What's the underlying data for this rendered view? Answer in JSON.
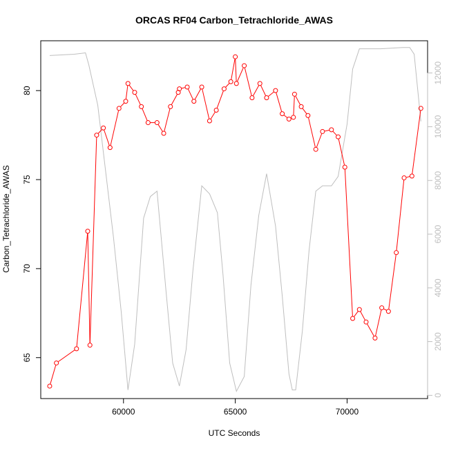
{
  "chart_data": {
    "type": "line",
    "title": "ORCAS RF04 Carbon_Tetrachloride_AWAS",
    "xlabel": "UTC Seconds",
    "ylabel": "Carbon_Tetrachloride_AWAS",
    "xlim": [
      56300,
      73600
    ],
    "ylim": [
      62.7,
      82.8
    ],
    "y2lim": [
      -120,
      13200
    ],
    "x_ticks": [
      60000,
      65000,
      70000
    ],
    "y_ticks": [
      65,
      70,
      75,
      80
    ],
    "y2_ticks": [
      0,
      2000,
      4000,
      6000,
      8000,
      10000,
      12000
    ],
    "grid": false,
    "series": [
      {
        "role": "primary",
        "color": "#ff0000",
        "marker": "open-circle",
        "points": [
          [
            56700,
            63.4
          ],
          [
            57000,
            64.7
          ],
          [
            57900,
            65.5
          ],
          [
            58400,
            72.1
          ],
          [
            58500,
            65.7
          ],
          [
            58800,
            77.5
          ],
          [
            59100,
            77.9
          ],
          [
            59400,
            76.8
          ],
          [
            59800,
            79.0
          ],
          [
            60100,
            79.4
          ],
          [
            60200,
            80.4
          ],
          [
            60500,
            79.9
          ],
          [
            60800,
            79.1
          ],
          [
            61100,
            78.2
          ],
          [
            61500,
            78.2
          ],
          [
            61800,
            77.6
          ],
          [
            62100,
            79.1
          ],
          [
            62450,
            79.9
          ],
          [
            62500,
            80.1
          ],
          [
            62850,
            80.2
          ],
          [
            63150,
            79.4
          ],
          [
            63500,
            80.2
          ],
          [
            63850,
            78.3
          ],
          [
            64150,
            78.9
          ],
          [
            64500,
            80.1
          ],
          [
            64800,
            80.5
          ],
          [
            65000,
            81.9
          ],
          [
            65050,
            80.4
          ],
          [
            65400,
            81.4
          ],
          [
            65750,
            79.6
          ],
          [
            66100,
            80.4
          ],
          [
            66400,
            79.6
          ],
          [
            66800,
            80.0
          ],
          [
            67100,
            78.7
          ],
          [
            67400,
            78.4
          ],
          [
            67600,
            78.5
          ],
          [
            67650,
            79.8
          ],
          [
            67950,
            79.1
          ],
          [
            68250,
            78.6
          ],
          [
            68600,
            76.7
          ],
          [
            68900,
            77.7
          ],
          [
            69300,
            77.8
          ],
          [
            69600,
            77.4
          ],
          [
            69900,
            75.7
          ],
          [
            70250,
            67.2
          ],
          [
            70550,
            67.7
          ],
          [
            70850,
            67.0
          ],
          [
            71250,
            66.1
          ],
          [
            71550,
            67.8
          ],
          [
            71850,
            67.6
          ],
          [
            72200,
            70.9
          ],
          [
            72550,
            75.1
          ],
          [
            72900,
            75.2
          ],
          [
            73300,
            79.0
          ]
        ]
      },
      {
        "role": "secondary",
        "color": "#bebebe",
        "marker": "none",
        "points": [
          [
            56700,
            12650
          ],
          [
            57800,
            12700
          ],
          [
            58300,
            12750
          ],
          [
            58450,
            12300
          ],
          [
            58850,
            10800
          ],
          [
            59550,
            5900
          ],
          [
            59900,
            3100
          ],
          [
            60200,
            200
          ],
          [
            60500,
            1900
          ],
          [
            60900,
            6600
          ],
          [
            61200,
            7400
          ],
          [
            61500,
            7600
          ],
          [
            61900,
            3900
          ],
          [
            62200,
            1200
          ],
          [
            62500,
            350
          ],
          [
            62800,
            1700
          ],
          [
            63100,
            4600
          ],
          [
            63500,
            7800
          ],
          [
            63850,
            7500
          ],
          [
            64200,
            6800
          ],
          [
            64450,
            4500
          ],
          [
            64750,
            1200
          ],
          [
            65050,
            150
          ],
          [
            65400,
            700
          ],
          [
            65700,
            4100
          ],
          [
            66050,
            6700
          ],
          [
            66400,
            8250
          ],
          [
            66800,
            6300
          ],
          [
            67100,
            3700
          ],
          [
            67400,
            800
          ],
          [
            67550,
            200
          ],
          [
            67700,
            200
          ],
          [
            68000,
            2400
          ],
          [
            68300,
            5400
          ],
          [
            68600,
            7600
          ],
          [
            68900,
            7800
          ],
          [
            69300,
            7800
          ],
          [
            69600,
            8150
          ],
          [
            70000,
            10100
          ],
          [
            70250,
            12150
          ],
          [
            70550,
            12900
          ],
          [
            71500,
            12900
          ],
          [
            72500,
            12950
          ],
          [
            72800,
            12950
          ],
          [
            73000,
            12700
          ],
          [
            73300,
            10200
          ]
        ]
      }
    ]
  }
}
